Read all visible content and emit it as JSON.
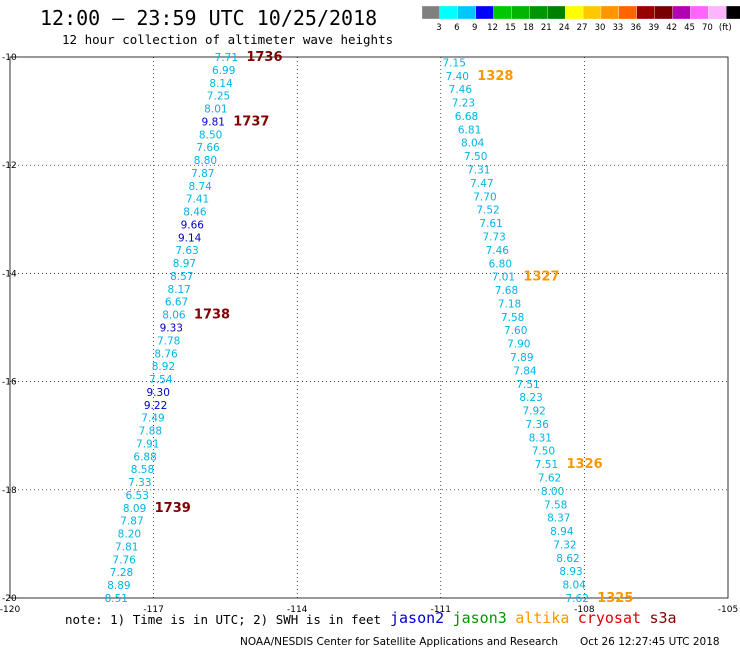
{
  "header": {
    "title": "12:00 – 23:59 UTC 10/25/2018",
    "subtitle": "12 hour collection of altimeter wave heights"
  },
  "color_scale": {
    "colors": [
      "#808080",
      "#00ffff",
      "#00c8ff",
      "#0000ff",
      "#00c800",
      "#00b400",
      "#009600",
      "#008000",
      "#ffff00",
      "#ffc800",
      "#ff9600",
      "#ff6400",
      "#960000",
      "#780000",
      "#b400b4",
      "#ff64ff",
      "#ffb4ff",
      "#000000"
    ],
    "labels": [
      "3",
      "6",
      "9",
      "12",
      "15",
      "18",
      "21",
      "24",
      "27",
      "30",
      "33",
      "36",
      "39",
      "42",
      "45",
      "70",
      "(ft)"
    ]
  },
  "footer": {
    "note": "note:  1) Time is in UTC;  2) SWH is in feet",
    "credit": "NOAA/NESDIS Center for Satellite Applications and Research",
    "timestamp": "Oct 26 12:27:45 UTC 2018"
  },
  "legend": [
    {
      "name": "jason2",
      "color": "#0000cc"
    },
    {
      "name": "jason3",
      "color": "#009600"
    },
    {
      "name": "altika",
      "color": "#ff9600"
    },
    {
      "name": "cryosat",
      "color": "#e00000"
    },
    {
      "name": "s3a",
      "color": "#800000"
    }
  ],
  "chart_data": {
    "type": "scatter",
    "x_ticks": [
      "-120",
      "-117",
      "-114",
      "-111",
      "-108",
      "-105"
    ],
    "y_ticks": [
      "-10",
      "-12",
      "-14",
      "-16",
      "-18",
      "-20"
    ],
    "xlim": [
      -120,
      -105
    ],
    "ylim": [
      -20,
      -10
    ],
    "grid": true,
    "tracks": [
      {
        "satellite": "s3a",
        "color": "#00b4e6",
        "start": [
          -115.48,
          -10.0
        ],
        "end": [
          -117.78,
          -20.0
        ],
        "values": [
          "7.71",
          "6.99",
          "8.14",
          "7.25",
          "8.01",
          "9.81",
          "8.50",
          "7.66",
          "8.80",
          "7.87",
          "8.74",
          "7.41",
          "8.46",
          "9.66",
          "9.14",
          "7.63",
          "8.97",
          "8.57",
          "8.17",
          "6.67",
          "8.06",
          "9.33",
          "7.78",
          "8.76",
          "8.92",
          "7.54",
          "9.30",
          "9.22",
          "7.49",
          "7.88",
          "7.91",
          "6.88",
          "8.58",
          "7.33",
          "6.53",
          "8.09",
          "7.87",
          "8.20",
          "7.81",
          "7.76",
          "7.28",
          "8.89",
          "8.51"
        ],
        "times": [
          {
            "label": "1736",
            "after": 0
          },
          {
            "label": "1737",
            "after": 5
          },
          {
            "label": "1738",
            "after": 20
          },
          {
            "label": "1739",
            "after": 35
          }
        ],
        "time_color": "#800000"
      },
      {
        "satellite": "altika",
        "color": "#00b4e6",
        "start": [
          -110.72,
          -10.1
        ],
        "end": [
          -108.15,
          -20.0
        ],
        "values": [
          "7.15",
          "7.40",
          "7.46",
          "7.23",
          "6.68",
          "6.81",
          "8.04",
          "7.50",
          "7.31",
          "7.47",
          "7.70",
          "7.52",
          "7.61",
          "7.73",
          "7.46",
          "6.80",
          "7.01",
          "7.68",
          "7.18",
          "7.58",
          "7.60",
          "7.90",
          "7.89",
          "7.84",
          "7.51",
          "8.23",
          "7.92",
          "7.36",
          "8.31",
          "7.50",
          "7.51",
          "7.62",
          "8.00",
          "7.58",
          "8.37",
          "8.94",
          "7.32",
          "8.62",
          "8.93",
          "8.04",
          "7.62"
        ],
        "times": [
          {
            "label": "1328",
            "after": 1
          },
          {
            "label": "1327",
            "after": 16
          },
          {
            "label": "1326",
            "after": 30
          },
          {
            "label": "1325",
            "after": 40
          }
        ],
        "time_color": "#ff9600"
      }
    ]
  }
}
